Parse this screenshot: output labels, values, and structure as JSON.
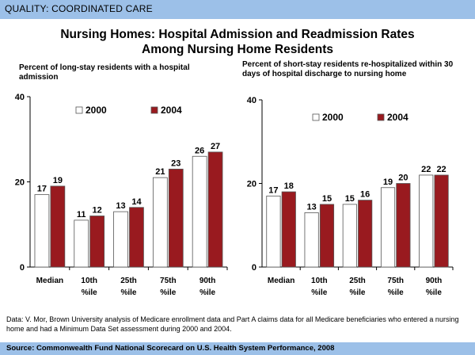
{
  "header": {
    "label": "QUALITY: COORDINATED CARE"
  },
  "title_line1": "Nursing Homes: Hospital Admission and Readmission Rates",
  "title_line2": "Among Nursing Home Residents",
  "colors": {
    "series_2000": "#ffffff",
    "series_2004": "#991a1f",
    "header_bg": "#9cc0e8"
  },
  "chart_data": [
    {
      "type": "bar",
      "subtitle": "Percent of long-stay residents with a hospital admission",
      "categories": [
        [
          "Median"
        ],
        [
          "10th",
          "%ile"
        ],
        [
          "25th",
          "%ile"
        ],
        [
          "75th",
          "%ile"
        ],
        [
          "90th",
          "%ile"
        ]
      ],
      "series": [
        {
          "name": "2000",
          "values": [
            17,
            11,
            13,
            21,
            26
          ]
        },
        {
          "name": "2004",
          "values": [
            19,
            12,
            14,
            23,
            27
          ]
        }
      ],
      "ylim": [
        0,
        40
      ],
      "yticks": [
        0,
        20,
        40
      ]
    },
    {
      "type": "bar",
      "subtitle": "Percent of short-stay residents re-hospitalized within 30 days of hospital discharge to nursing home",
      "categories": [
        [
          "Median"
        ],
        [
          "10th",
          "%ile"
        ],
        [
          "25th",
          "%ile"
        ],
        [
          "75th",
          "%ile"
        ],
        [
          "90th",
          "%ile"
        ]
      ],
      "series": [
        {
          "name": "2000",
          "values": [
            17,
            13,
            15,
            19,
            22
          ]
        },
        {
          "name": "2004",
          "values": [
            18,
            15,
            16,
            20,
            22
          ]
        }
      ],
      "ylim": [
        0,
        40
      ],
      "yticks": [
        0,
        20,
        40
      ]
    }
  ],
  "data_note": "Data: V. Mor, Brown University analysis of Medicare enrollment data and Part A claims data for all Medicare beneficiaries who entered a nursing home and had a Minimum Data Set assessment during 2000 and 2004.",
  "footer": {
    "source": "Source: Commonwealth Fund National Scorecard on U.S. Health System Performance, 2008"
  }
}
